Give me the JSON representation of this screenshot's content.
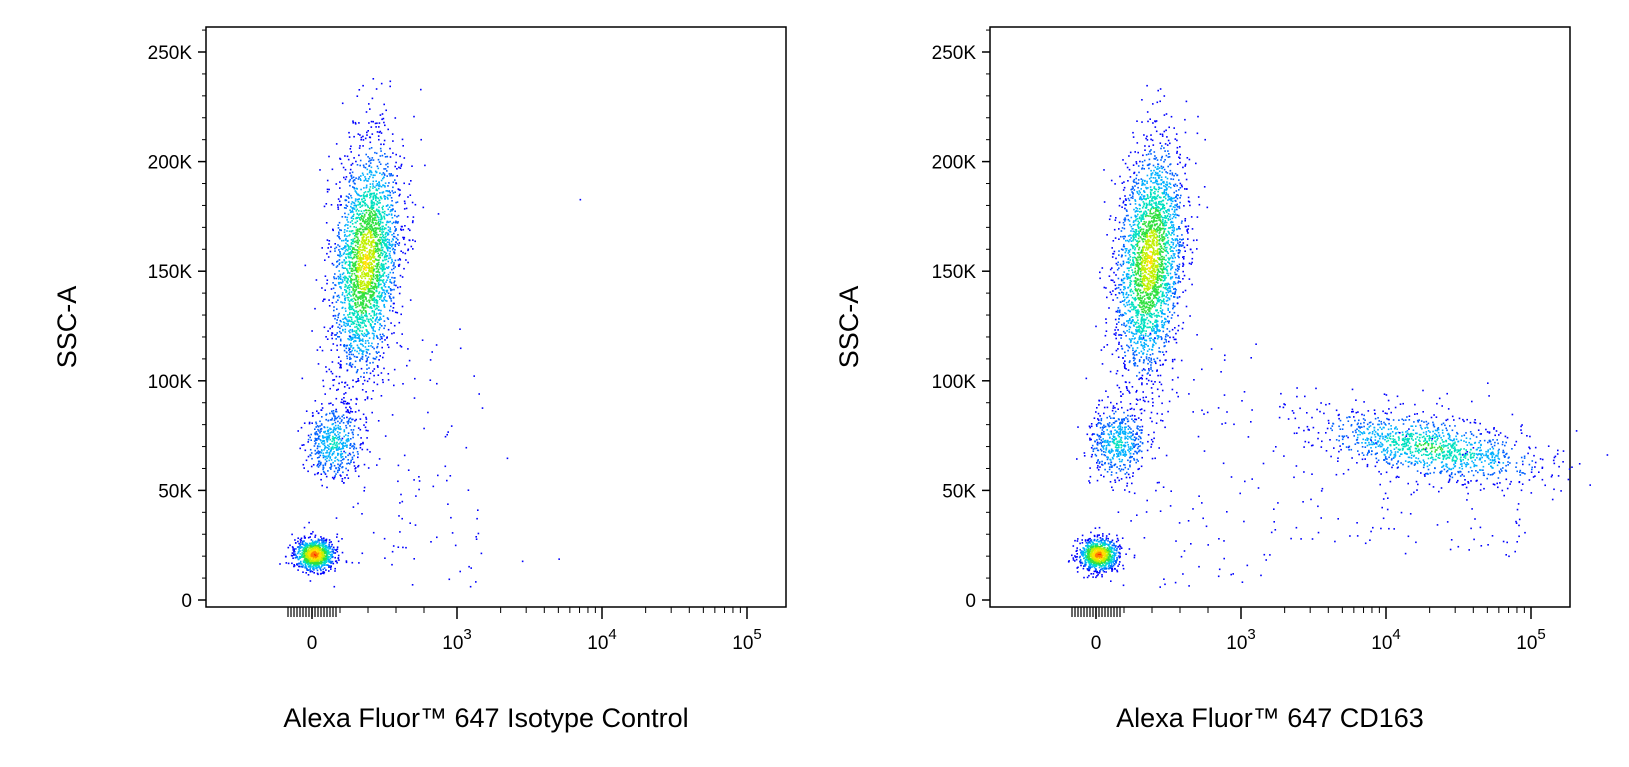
{
  "chart_data": [
    {
      "type": "scatter",
      "title": "",
      "xlabel": "Alexa Fluor™ 647 Isotype Control",
      "ylabel": "SSC-A",
      "x_scale": "biexponential",
      "x_ticks": [
        {
          "value": 0,
          "label": "0",
          "exp": ""
        },
        {
          "value": 1000,
          "label": "10",
          "exp": "3"
        },
        {
          "value": 10000,
          "label": "10",
          "exp": "4"
        },
        {
          "value": 100000,
          "label": "10",
          "exp": "5"
        }
      ],
      "y_ticks": [
        {
          "value": 0,
          "label": "0"
        },
        {
          "value": 50000,
          "label": "50K"
        },
        {
          "value": 100000,
          "label": "100K"
        },
        {
          "value": 150000,
          "label": "150K"
        },
        {
          "value": 200000,
          "label": "200K"
        },
        {
          "value": 250000,
          "label": "250K"
        }
      ],
      "ylim": [
        0,
        262144
      ],
      "color_map": "density (blue → cyan → green → yellow → red)",
      "series": [
        {
          "x": [
            0,
            10,
            -20,
            15,
            -10,
            25,
            5,
            -30,
            40,
            0,
            20,
            -15
          ],
          "y": [
            22000,
            20000,
            25000,
            18000,
            28000,
            21000,
            30000,
            19000,
            24000,
            16000,
            26000,
            23000
          ]
        },
        {
          "x": [
            300,
            350,
            400,
            280,
            450,
            330,
            380,
            420,
            260,
            500,
            310,
            360,
            390,
            440,
            290,
            340,
            410,
            370,
            320,
            470,
            250,
            550,
            600,
            230
          ],
          "y": [
            150000,
            160000,
            140000,
            130000,
            170000,
            145000,
            155000,
            180000,
            120000,
            190000,
            135000,
            165000,
            175000,
            125000,
            110000,
            200000,
            150000,
            140000,
            160000,
            210000,
            100000,
            220000,
            170000,
            115000
          ]
        },
        {
          "x": [
            60,
            80,
            100,
            120,
            70,
            90,
            110,
            130,
            150
          ],
          "y": [
            70000,
            75000,
            65000,
            80000,
            60000,
            72000,
            85000,
            68000,
            78000
          ]
        }
      ]
    },
    {
      "type": "scatter",
      "title": "",
      "xlabel": "Alexa Fluor™ 647 CD163",
      "ylabel": "SSC-A",
      "x_scale": "biexponential",
      "x_ticks": [
        {
          "value": 0,
          "label": "0",
          "exp": ""
        },
        {
          "value": 1000,
          "label": "10",
          "exp": "3"
        },
        {
          "value": 10000,
          "label": "10",
          "exp": "4"
        },
        {
          "value": 100000,
          "label": "10",
          "exp": "5"
        }
      ],
      "y_ticks": [
        {
          "value": 0,
          "label": "0"
        },
        {
          "value": 50000,
          "label": "50K"
        },
        {
          "value": 100000,
          "label": "100K"
        },
        {
          "value": 150000,
          "label": "150K"
        },
        {
          "value": 200000,
          "label": "200K"
        },
        {
          "value": 250000,
          "label": "250K"
        }
      ],
      "ylim": [
        0,
        262144
      ],
      "color_map": "density (blue → cyan → green → yellow → red)",
      "series": [
        {
          "x": [
            0,
            10,
            -20,
            15,
            -10,
            25,
            5,
            -30,
            40,
            0,
            20,
            -15
          ],
          "y": [
            22000,
            20000,
            25000,
            18000,
            28000,
            21000,
            30000,
            19000,
            24000,
            16000,
            26000,
            23000
          ]
        },
        {
          "x": [
            300,
            350,
            400,
            280,
            450,
            330,
            380,
            420,
            260,
            500,
            310,
            360,
            390,
            440,
            290,
            340,
            410,
            370,
            320,
            470,
            250,
            550
          ],
          "y": [
            150000,
            160000,
            140000,
            130000,
            170000,
            145000,
            155000,
            180000,
            120000,
            190000,
            135000,
            165000,
            175000,
            125000,
            110000,
            200000,
            150000,
            140000,
            160000,
            210000,
            100000,
            220000
          ]
        },
        {
          "x": [
            5000,
            8000,
            12000,
            15000,
            20000,
            25000,
            30000,
            35000,
            40000,
            18000,
            22000,
            28000,
            10000,
            45000,
            50000,
            6000
          ],
          "y": [
            75000,
            80000,
            72000,
            78000,
            70000,
            68000,
            65000,
            62000,
            60000,
            85000,
            74000,
            66000,
            90000,
            58000,
            55000,
            70000
          ]
        }
      ]
    }
  ]
}
